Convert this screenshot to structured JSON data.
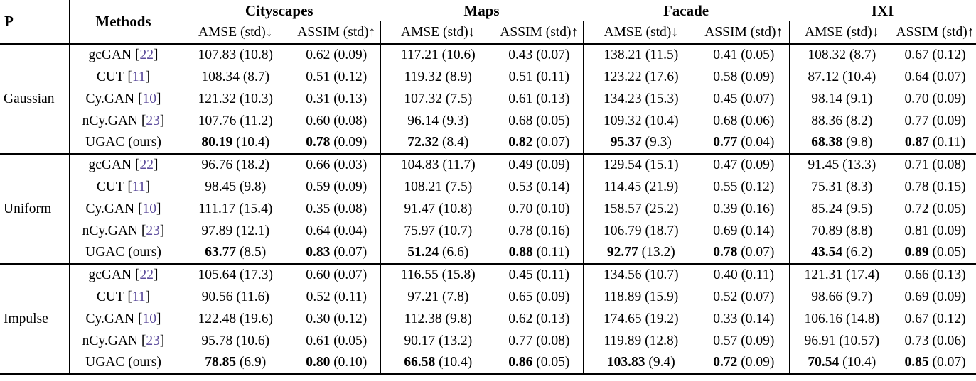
{
  "colors": {
    "citation": "#5b4a9b",
    "text": "#000000",
    "background": "#ffffff",
    "rule": "#000000"
  },
  "title_row": {
    "p": "P",
    "methods": "Methods"
  },
  "datasets": [
    "Cityscapes",
    "Maps",
    "Facade",
    "IXI"
  ],
  "metric_headers": {
    "amse": "AMSE (std)↓",
    "assim": "ASSIM (std)↑"
  },
  "blocks": [
    {
      "noise": "Gaussian",
      "rows": [
        {
          "method": "gcGAN",
          "citation": "22",
          "best": false,
          "cells": [
            {
              "v": "107.83",
              "s": "10.8"
            },
            {
              "v": "0.62",
              "s": "0.09"
            },
            {
              "v": "117.21",
              "s": "10.6"
            },
            {
              "v": "0.43",
              "s": "0.07"
            },
            {
              "v": "138.21",
              "s": "11.5"
            },
            {
              "v": "0.41",
              "s": "0.05"
            },
            {
              "v": "108.32",
              "s": "8.7"
            },
            {
              "v": "0.67",
              "s": "0.12"
            }
          ]
        },
        {
          "method": "CUT",
          "citation": "11",
          "best": false,
          "cells": [
            {
              "v": "108.34",
              "s": "8.7"
            },
            {
              "v": "0.51",
              "s": "0.12"
            },
            {
              "v": "119.32",
              "s": "8.9"
            },
            {
              "v": "0.51",
              "s": "0.11"
            },
            {
              "v": "123.22",
              "s": "17.6"
            },
            {
              "v": "0.58",
              "s": "0.09"
            },
            {
              "v": "87.12",
              "s": "10.4"
            },
            {
              "v": "0.64",
              "s": "0.07"
            }
          ]
        },
        {
          "method": "Cy.GAN",
          "citation": "10",
          "best": false,
          "cells": [
            {
              "v": "121.32",
              "s": "10.3"
            },
            {
              "v": "0.31",
              "s": "0.13"
            },
            {
              "v": "107.32",
              "s": "7.5"
            },
            {
              "v": "0.61",
              "s": "0.13"
            },
            {
              "v": "134.23",
              "s": "15.3"
            },
            {
              "v": "0.45",
              "s": "0.07"
            },
            {
              "v": "98.14",
              "s": "9.1"
            },
            {
              "v": "0.70",
              "s": "0.09"
            }
          ]
        },
        {
          "method": "nCy.GAN",
          "citation": "23",
          "best": false,
          "cells": [
            {
              "v": "107.76",
              "s": "11.2"
            },
            {
              "v": "0.60",
              "s": "0.08"
            },
            {
              "v": "96.14",
              "s": "9.3"
            },
            {
              "v": "0.68",
              "s": "0.05"
            },
            {
              "v": "109.32",
              "s": "10.4"
            },
            {
              "v": "0.68",
              "s": "0.06"
            },
            {
              "v": "88.36",
              "s": "8.2"
            },
            {
              "v": "0.77",
              "s": "0.09"
            }
          ]
        },
        {
          "method": "UGAC (ours)",
          "citation": null,
          "best": true,
          "cells": [
            {
              "v": "80.19",
              "s": "10.4"
            },
            {
              "v": "0.78",
              "s": "0.09"
            },
            {
              "v": "72.32",
              "s": "8.4"
            },
            {
              "v": "0.82",
              "s": "0.07"
            },
            {
              "v": "95.37",
              "s": "9.3"
            },
            {
              "v": "0.77",
              "s": "0.04"
            },
            {
              "v": "68.38",
              "s": "9.8"
            },
            {
              "v": "0.87",
              "s": "0.11"
            }
          ]
        }
      ]
    },
    {
      "noise": "Uniform",
      "rows": [
        {
          "method": "gcGAN",
          "citation": "22",
          "best": false,
          "cells": [
            {
              "v": "96.76",
              "s": "18.2"
            },
            {
              "v": "0.66",
              "s": "0.03"
            },
            {
              "v": "104.83",
              "s": "11.7"
            },
            {
              "v": "0.49",
              "s": "0.09"
            },
            {
              "v": "129.54",
              "s": "15.1"
            },
            {
              "v": "0.47",
              "s": "0.09"
            },
            {
              "v": "91.45",
              "s": "13.3"
            },
            {
              "v": "0.71",
              "s": "0.08"
            }
          ]
        },
        {
          "method": "CUT",
          "citation": "11",
          "best": false,
          "cells": [
            {
              "v": "98.45",
              "s": "9.8"
            },
            {
              "v": "0.59",
              "s": "0.09"
            },
            {
              "v": "108.21",
              "s": "7.5"
            },
            {
              "v": "0.53",
              "s": "0.14"
            },
            {
              "v": "114.45",
              "s": "21.9"
            },
            {
              "v": "0.55",
              "s": "0.12"
            },
            {
              "v": "75.31",
              "s": "8.3"
            },
            {
              "v": "0.78",
              "s": "0.15"
            }
          ]
        },
        {
          "method": "Cy.GAN",
          "citation": "10",
          "best": false,
          "cells": [
            {
              "v": "111.17",
              "s": "15.4"
            },
            {
              "v": "0.35",
              "s": "0.08"
            },
            {
              "v": "91.47",
              "s": "10.8"
            },
            {
              "v": "0.70",
              "s": "0.10"
            },
            {
              "v": "158.57",
              "s": "25.2"
            },
            {
              "v": "0.39",
              "s": "0.16"
            },
            {
              "v": "85.24",
              "s": "9.5"
            },
            {
              "v": "0.72",
              "s": "0.05"
            }
          ]
        },
        {
          "method": "nCy.GAN",
          "citation": "23",
          "best": false,
          "cells": [
            {
              "v": "97.89",
              "s": "12.1"
            },
            {
              "v": "0.64",
              "s": "0.04"
            },
            {
              "v": "75.97",
              "s": "10.7"
            },
            {
              "v": "0.78",
              "s": "0.16"
            },
            {
              "v": "106.79",
              "s": "18.7"
            },
            {
              "v": "0.69",
              "s": "0.14"
            },
            {
              "v": "70.89",
              "s": "8.8"
            },
            {
              "v": "0.81",
              "s": "0.09"
            }
          ]
        },
        {
          "method": "UGAC (ours)",
          "citation": null,
          "best": true,
          "cells": [
            {
              "v": "63.77",
              "s": "8.5"
            },
            {
              "v": "0.83",
              "s": "0.07"
            },
            {
              "v": "51.24",
              "s": "6.6"
            },
            {
              "v": "0.88",
              "s": "0.11"
            },
            {
              "v": "92.77",
              "s": "13.2"
            },
            {
              "v": "0.78",
              "s": "0.07"
            },
            {
              "v": "43.54",
              "s": "6.2"
            },
            {
              "v": "0.89",
              "s": "0.05"
            }
          ]
        }
      ]
    },
    {
      "noise": "Impulse",
      "rows": [
        {
          "method": "gcGAN",
          "citation": "22",
          "best": false,
          "cells": [
            {
              "v": "105.64",
              "s": "17.3"
            },
            {
              "v": "0.60",
              "s": "0.07"
            },
            {
              "v": "116.55",
              "s": "15.8"
            },
            {
              "v": "0.45",
              "s": "0.11"
            },
            {
              "v": "134.56",
              "s": "10.7"
            },
            {
              "v": "0.40",
              "s": "0.11"
            },
            {
              "v": "121.31",
              "s": "17.4"
            },
            {
              "v": "0.66",
              "s": "0.13"
            }
          ]
        },
        {
          "method": "CUT",
          "citation": "11",
          "best": false,
          "cells": [
            {
              "v": "90.56",
              "s": "11.6"
            },
            {
              "v": "0.52",
              "s": "0.11"
            },
            {
              "v": "97.21",
              "s": "7.8"
            },
            {
              "v": "0.65",
              "s": "0.09"
            },
            {
              "v": "118.89",
              "s": "15.9"
            },
            {
              "v": "0.52",
              "s": "0.07"
            },
            {
              "v": "98.66",
              "s": "9.7"
            },
            {
              "v": "0.69",
              "s": "0.09"
            }
          ]
        },
        {
          "method": "Cy.GAN",
          "citation": "10",
          "best": false,
          "cells": [
            {
              "v": "122.48",
              "s": "19.6"
            },
            {
              "v": "0.30",
              "s": "0.12"
            },
            {
              "v": "112.38",
              "s": "9.8"
            },
            {
              "v": "0.62",
              "s": "0.13"
            },
            {
              "v": "174.65",
              "s": "19.2"
            },
            {
              "v": "0.33",
              "s": "0.14"
            },
            {
              "v": "106.16",
              "s": "14.8"
            },
            {
              "v": "0.67",
              "s": "0.12"
            }
          ]
        },
        {
          "method": "nCy.GAN",
          "citation": "23",
          "best": false,
          "cells": [
            {
              "v": "95.78",
              "s": "10.6"
            },
            {
              "v": "0.61",
              "s": "0.05"
            },
            {
              "v": "90.17",
              "s": "13.2"
            },
            {
              "v": "0.77",
              "s": "0.08"
            },
            {
              "v": "119.89",
              "s": "12.8"
            },
            {
              "v": "0.57",
              "s": "0.09"
            },
            {
              "v": "96.91",
              "s": "10.57"
            },
            {
              "v": "0.73",
              "s": "0.06"
            }
          ]
        },
        {
          "method": "UGAC (ours)",
          "citation": null,
          "best": true,
          "cells": [
            {
              "v": "78.85",
              "s": "6.9"
            },
            {
              "v": "0.80",
              "s": "0.10"
            },
            {
              "v": "66.58",
              "s": "10.4"
            },
            {
              "v": "0.86",
              "s": "0.05"
            },
            {
              "v": "103.83",
              "s": "9.4"
            },
            {
              "v": "0.72",
              "s": "0.09"
            },
            {
              "v": "70.54",
              "s": "10.4"
            },
            {
              "v": "0.85",
              "s": "0.07"
            }
          ]
        }
      ]
    }
  ]
}
